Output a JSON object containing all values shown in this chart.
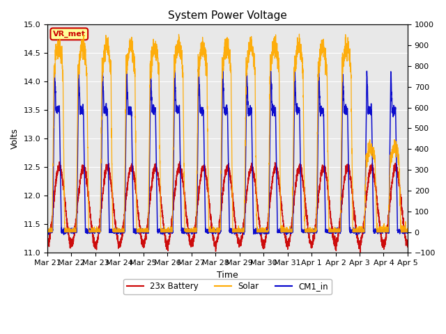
{
  "title": "System Power Voltage",
  "xlabel": "Time",
  "ylabel": "Volts",
  "ylim_left": [
    11.0,
    15.0
  ],
  "ylim_right": [
    -100,
    1000
  ],
  "yticks_left": [
    11.0,
    11.5,
    12.0,
    12.5,
    13.0,
    13.5,
    14.0,
    14.5,
    15.0
  ],
  "yticks_right": [
    -100,
    0,
    100,
    200,
    300,
    400,
    500,
    600,
    700,
    800,
    900,
    1000
  ],
  "background_color": "#e8e8e8",
  "annotation_text": "VR_met",
  "annotation_color": "#cc0000",
  "annotation_bg": "#ffff99",
  "line_battery_color": "#cc0000",
  "line_solar_color": "#ffaa00",
  "line_cm1_color": "#0000cc",
  "legend_labels": [
    "23x Battery",
    "Solar",
    "CM1_in"
  ],
  "x_tick_labels": [
    "Mar 21",
    "Mar 22",
    "Mar 23",
    "Mar 24",
    "Mar 25",
    "Mar 26",
    "Mar 27",
    "Mar 28",
    "Mar 29",
    "Mar 30",
    "Mar 31",
    "Apr 1",
    "Apr 2",
    "Apr 3",
    "Apr 4",
    "Apr 5"
  ],
  "n_days": 15,
  "pts_per_day": 288
}
